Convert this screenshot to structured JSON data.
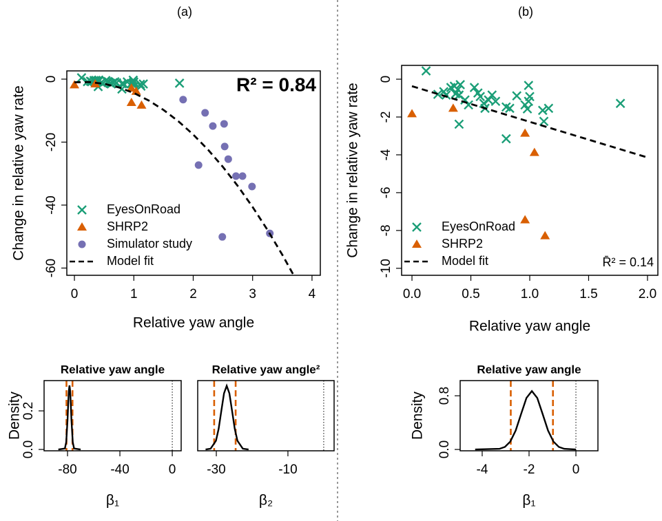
{
  "chart_data": [
    {
      "type": "scatter",
      "panel": "(a)",
      "xlabel": "Relative yaw angle",
      "ylabel": "Change in relative yaw rate",
      "xlim": [
        -0.128,
        4.14
      ],
      "ylim": [
        -62.3,
        2.62
      ],
      "xticks": [
        0,
        1,
        2,
        3,
        4
      ],
      "yticks": [
        0,
        -20,
        -40,
        -60
      ],
      "legend": "bottom-left",
      "annotation": "R² = 0.84",
      "annotation_position": "top-right",
      "series": [
        {
          "name": "EyesOnRoad",
          "color": "#1b9e77",
          "marker": "cross",
          "x": [
            0.12,
            0.22,
            0.27,
            0.29,
            0.33,
            0.36,
            0.39,
            0.41,
            0.37,
            0.4,
            0.4,
            0.45,
            0.48,
            0.53,
            0.56,
            0.58,
            0.61,
            0.62,
            0.65,
            0.68,
            0.71,
            0.8,
            0.83,
            0.8,
            0.89,
            0.96,
            0.98,
            0.99,
            0.99,
            1.0,
            1.11,
            1.12,
            1.16,
            1.77
          ],
          "values": [
            0.44,
            -0.8,
            -0.66,
            -0.84,
            -0.44,
            -0.37,
            -0.55,
            -0.29,
            -0.77,
            -0.84,
            -2.38,
            -1.1,
            -1.36,
            -0.44,
            -0.73,
            -0.92,
            -1.28,
            -1.54,
            -1.1,
            -0.84,
            -1.17,
            -1.47,
            -1.54,
            -3.15,
            -0.88,
            -1.36,
            -1.57,
            -0.33,
            -1.17,
            -0.92,
            -1.65,
            -2.23,
            -1.54,
            -1.28
          ]
        },
        {
          "name": "SHRP2",
          "color": "#d95f02",
          "marker": "triangle",
          "x": [
            0,
            0.35,
            0.96,
            1.04,
            0.96,
            1.13
          ],
          "values": [
            -1.83,
            -1.54,
            -2.86,
            -3.88,
            -7.44,
            -8.28
          ]
        },
        {
          "name": "Simulator study",
          "color": "#7570b3",
          "marker": "circle",
          "x": [
            1.83,
            2.2,
            2.33,
            2.52,
            2.09,
            2.53,
            2.59,
            2.72,
            2.83,
            2.99,
            2.49,
            3.29
          ],
          "values": [
            -6.5,
            -10.7,
            -14.9,
            -14.2,
            -27.3,
            -21.4,
            -25.4,
            -30.8,
            -30.8,
            -34.1,
            -50.1,
            -49.0
          ]
        },
        {
          "name": "Model fit",
          "color": "#000000",
          "marker": "dashed-line",
          "x": [
            0,
            0.25,
            0.5,
            0.75,
            1,
            1.25,
            1.5,
            1.75,
            2,
            2.25,
            2.5,
            2.75,
            3,
            3.25,
            3.5,
            3.75
          ],
          "values": [
            -1,
            -0.93,
            -1.48,
            -2.63,
            -4.4,
            -6.78,
            -9.78,
            -13.38,
            -17.6,
            -22.43,
            -27.88,
            -33.93,
            -40.6,
            -47.88,
            -55.78,
            -64.28
          ]
        }
      ]
    },
    {
      "type": "density",
      "title": "Relative yaw angle",
      "xlabel": "β₁",
      "ylabel": "Density",
      "xlim": [
        -97.9,
        6.8
      ],
      "ylim": [
        -0.007,
        0.357
      ],
      "xticks": [
        -80,
        -40,
        0
      ],
      "yticks": [
        {
          "value": 0,
          "label": "0.0"
        },
        0.2
      ],
      "color": "#000000",
      "x": [
        -87,
        -82,
        -81,
        -80,
        -79.5,
        -79,
        -78.5,
        -78,
        -77.5,
        -77,
        -76,
        -75,
        -70
      ],
      "values": [
        0,
        0.005,
        0.038,
        0.152,
        0.235,
        0.304,
        0.332,
        0.304,
        0.235,
        0.152,
        0.038,
        0.005,
        0
      ],
      "interval": [
        -80.8,
        -76.2
      ],
      "interval_color": "#d95f02",
      "ref_line": 0
    },
    {
      "type": "density",
      "title": "Relative yaw angle²",
      "xlabel": "β₂",
      "xlim": [
        -35.2,
        2.9
      ],
      "ylim": [
        -0.007,
        0.357
      ],
      "xticks": [
        -30,
        -10
      ],
      "color": "#000000",
      "x": [
        -33,
        -31.6,
        -30.1,
        -29.35,
        -28.6,
        -27.85,
        -27.1,
        -26.35,
        -25.6,
        -24.85,
        -24.1,
        -22.6,
        -21
      ],
      "values": [
        0,
        0.004,
        0.045,
        0.107,
        0.2,
        0.291,
        0.33,
        0.291,
        0.2,
        0.107,
        0.045,
        0.004,
        0
      ],
      "interval": [
        -30.6,
        -24.6
      ],
      "interval_color": "#d95f02",
      "ref_line": 0
    },
    {
      "type": "scatter",
      "panel": "(b)",
      "xlabel": "Relative yaw angle",
      "ylabel": "Change in relative yaw rate",
      "xlim": [
        -0.088,
        2.088
      ],
      "ylim": [
        -10.37,
        0.73
      ],
      "xticks": [
        {
          "value": 0,
          "label": "0.0"
        },
        0.5,
        {
          "value": 1,
          "label": "1.0"
        },
        1.5,
        {
          "value": 2,
          "label": "2.0"
        }
      ],
      "yticks": [
        0,
        -2,
        -4,
        -6,
        -8,
        -10
      ],
      "legend": "bottom-left",
      "annotation": "R̄² = 0.14",
      "annotation_position": "bottom-right",
      "series": [
        {
          "name": "EyesOnRoad",
          "color": "#1b9e77",
          "marker": "cross",
          "x": [
            0.12,
            0.22,
            0.27,
            0.29,
            0.33,
            0.36,
            0.39,
            0.41,
            0.37,
            0.4,
            0.4,
            0.45,
            0.48,
            0.53,
            0.56,
            0.58,
            0.61,
            0.62,
            0.65,
            0.68,
            0.71,
            0.8,
            0.83,
            0.8,
            0.89,
            0.96,
            0.98,
            0.99,
            0.99,
            1.0,
            1.11,
            1.12,
            1.16,
            1.77
          ],
          "values": [
            0.44,
            -0.8,
            -0.66,
            -0.84,
            -0.44,
            -0.37,
            -0.55,
            -0.29,
            -0.77,
            -0.84,
            -2.38,
            -1.1,
            -1.36,
            -0.44,
            -0.73,
            -0.92,
            -1.28,
            -1.54,
            -1.1,
            -0.84,
            -1.17,
            -1.47,
            -1.54,
            -3.15,
            -0.88,
            -1.36,
            -1.57,
            -0.33,
            -1.17,
            -0.92,
            -1.65,
            -2.23,
            -1.54,
            -1.28
          ]
        },
        {
          "name": "SHRP2",
          "color": "#d95f02",
          "marker": "triangle",
          "x": [
            0,
            0.35,
            0.96,
            1.04,
            0.96,
            1.13
          ],
          "values": [
            -1.83,
            -1.54,
            -2.86,
            -3.88,
            -7.44,
            -8.28
          ]
        },
        {
          "name": "Model fit",
          "color": "#000000",
          "marker": "dashed-line",
          "x": [
            0,
            2
          ],
          "values": [
            -0.37,
            -4.14
          ]
        }
      ]
    },
    {
      "type": "density",
      "title": "Relative yaw angle",
      "xlabel": "β₁",
      "ylabel": "Density",
      "xlim": [
        -4.94,
        0.94
      ],
      "ylim": [
        -0.02,
        1.026
      ],
      "xticks": [
        -4,
        -2,
        0
      ],
      "yticks": [
        {
          "value": 0,
          "label": "0.0"
        },
        0.8
      ],
      "color": "#000000",
      "x": [
        -4.3,
        -3.26,
        -3.03,
        -2.8,
        -2.57,
        -2.34,
        -2.11,
        -1.88,
        -1.65,
        -1.42,
        -1.19,
        -0.96,
        -0.73,
        -0.5,
        0
      ],
      "values": [
        0,
        0.0097,
        0.038,
        0.118,
        0.282,
        0.528,
        0.768,
        0.87,
        0.768,
        0.528,
        0.282,
        0.118,
        0.038,
        0.0097,
        0
      ],
      "interval": [
        -2.78,
        -0.98
      ],
      "interval_color": "#d95f02",
      "ref_line": 0
    }
  ]
}
